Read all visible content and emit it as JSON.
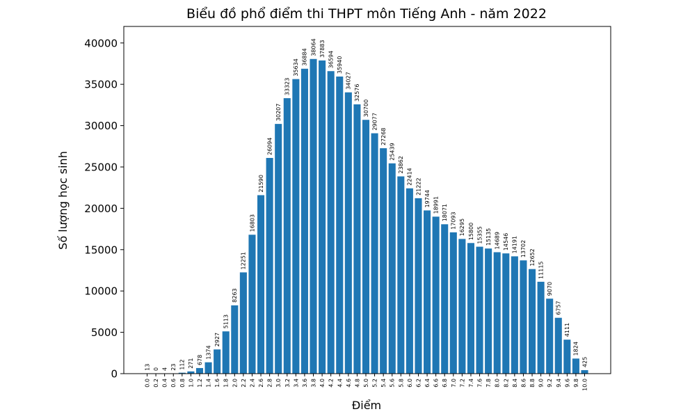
{
  "chart_data": {
    "type": "bar",
    "title": "Biểu đồ phổ điểm thi THPT môn Tiếng Anh - năm 2022",
    "xlabel": "Điểm",
    "ylabel": "Số lượng học sinh",
    "categories": [
      "0.0",
      "0.2",
      "0.4",
      "0.6",
      "0.8",
      "1.0",
      "1.2",
      "1.4",
      "1.6",
      "1.8",
      "2.0",
      "2.2",
      "2.4",
      "2.6",
      "2.8",
      "3.0",
      "3.2",
      "3.4",
      "3.6",
      "3.8",
      "4.0",
      "4.2",
      "4.4",
      "4.6",
      "4.8",
      "5.0",
      "5.2",
      "5.4",
      "5.6",
      "5.8",
      "6.0",
      "6.2",
      "6.4",
      "6.6",
      "6.8",
      "7.0",
      "7.2",
      "7.4",
      "7.6",
      "7.8",
      "8.0",
      "8.2",
      "8.4",
      "8.6",
      "8.8",
      "9.0",
      "9.2",
      "9.4",
      "9.6",
      "9.8",
      "10.0"
    ],
    "values": [
      13,
      0,
      4,
      23,
      112,
      271,
      678,
      1374,
      2927,
      5113,
      8263,
      12251,
      16803,
      21590,
      26094,
      30207,
      33323,
      35634,
      36884,
      38064,
      37883,
      36594,
      35940,
      34027,
      32576,
      30700,
      29077,
      27268,
      25439,
      23862,
      22414,
      21222,
      19744,
      18991,
      18071,
      17093,
      16295,
      15800,
      15355,
      15135,
      14689,
      14546,
      14191,
      13702,
      12652,
      11115,
      9070,
      6757,
      4111,
      1824,
      425
    ],
    "ylim": [
      0,
      42000
    ],
    "yticks": [
      0,
      5000,
      10000,
      15000,
      20000,
      25000,
      30000,
      35000,
      40000
    ],
    "bar_color": "#1f77b4",
    "grid": false,
    "legend": "none"
  }
}
